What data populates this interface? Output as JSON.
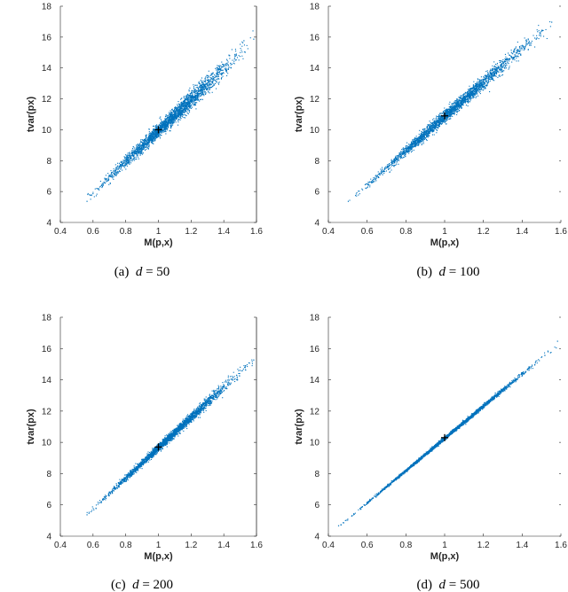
{
  "chart_data": [
    {
      "type": "scatter",
      "caption": "(a)  d = 50",
      "caption_prefix": "(a)",
      "caption_var": "d",
      "caption_value": "50",
      "xlabel": "M(p,x)",
      "ylabel": "tvar(px)",
      "xlim": [
        0.4,
        1.6
      ],
      "ylim": [
        4,
        18
      ],
      "xticks": [
        "0.4",
        "0.6",
        "0.8",
        "1",
        "1.2",
        "1.4",
        "1.6"
      ],
      "yticks": [
        "4",
        "6",
        "8",
        "10",
        "12",
        "14",
        "16",
        "18"
      ],
      "right_axis_line": true,
      "marker": {
        "x": 1.0,
        "y": 10.0
      },
      "point_cloud": {
        "x_min": 0.55,
        "x_max": 1.58,
        "intercept": 0.0,
        "slope": 10.0,
        "width": 0.55,
        "count": 2600,
        "outliers": [
          [
            0.56,
            5.4
          ],
          [
            1.52,
            15.8
          ],
          [
            1.58,
            15.9
          ]
        ]
      },
      "color": "#0072BD"
    },
    {
      "type": "scatter",
      "caption": "(b)  d = 100",
      "caption_prefix": "(b)",
      "caption_var": "d",
      "caption_value": "100",
      "xlabel": "M(p,x)",
      "ylabel": "tvar(px)",
      "xlim": [
        0.4,
        1.6
      ],
      "ylim": [
        4,
        18
      ],
      "xticks": [
        "0.4",
        "0.6",
        "0.8",
        "1",
        "1.2",
        "1.4",
        "1.6"
      ],
      "yticks": [
        "4",
        "6",
        "8",
        "10",
        "12",
        "14",
        "16",
        "18"
      ],
      "right_axis_line": false,
      "marker": {
        "x": 1.0,
        "y": 10.9
      },
      "point_cloud": {
        "x_min": 0.5,
        "x_max": 1.55,
        "intercept": -0.2,
        "slope": 11.1,
        "width": 0.45,
        "count": 2600,
        "outliers": [
          [
            0.5,
            5.4
          ],
          [
            1.55,
            17.0
          ]
        ]
      },
      "color": "#0072BD"
    },
    {
      "type": "scatter",
      "caption": "(c)  d = 200",
      "caption_prefix": "(c)",
      "caption_var": "d",
      "caption_value": "200",
      "xlabel": "M(p,x)",
      "ylabel": "tvar(px)",
      "xlim": [
        0.4,
        1.6
      ],
      "ylim": [
        4,
        18
      ],
      "xticks": [
        "0.4",
        "0.6",
        "0.8",
        "1",
        "1.2",
        "1.4",
        "1.6"
      ],
      "yticks": [
        "4",
        "6",
        "8",
        "10",
        "12",
        "14",
        "16",
        "18"
      ],
      "right_axis_line": true,
      "marker": {
        "x": 1.0,
        "y": 9.7
      },
      "point_cloud": {
        "x_min": 0.56,
        "x_max": 1.58,
        "intercept": 0.0,
        "slope": 9.7,
        "width": 0.3,
        "count": 2600,
        "outliers": [
          [
            0.56,
            5.4
          ],
          [
            1.58,
            15.3
          ]
        ]
      },
      "color": "#0072BD"
    },
    {
      "type": "scatter",
      "caption": "(d)  d = 500",
      "caption_prefix": "(d)",
      "caption_var": "d",
      "caption_value": "500",
      "xlabel": "M(p,x)",
      "ylabel": "tvar(px)",
      "xlim": [
        0.4,
        1.6
      ],
      "ylim": [
        4,
        18
      ],
      "xticks": [
        "0.4",
        "0.6",
        "0.8",
        "1",
        "1.2",
        "1.4",
        "1.6"
      ],
      "yticks": [
        "4",
        "6",
        "8",
        "10",
        "12",
        "14",
        "16",
        "18"
      ],
      "right_axis_line": false,
      "marker": {
        "x": 1.0,
        "y": 10.3
      },
      "point_cloud": {
        "x_min": 0.45,
        "x_max": 1.58,
        "intercept": 0.0,
        "slope": 10.3,
        "width": 0.12,
        "count": 2600,
        "outliers": [
          [
            0.45,
            4.7
          ],
          [
            1.58,
            16.5
          ]
        ]
      },
      "color": "#0072BD"
    }
  ]
}
